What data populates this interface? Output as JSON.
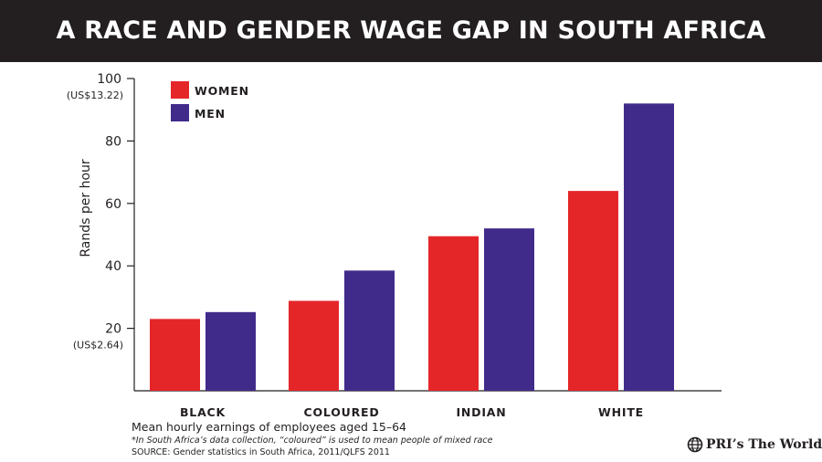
{
  "header": {
    "title": "A RACE AND GENDER WAGE GAP IN SOUTH AFRICA"
  },
  "chart_data": {
    "type": "bar",
    "title": "A RACE AND GENDER WAGE GAP IN SOUTH AFRICA",
    "ylabel": "Rands per hour",
    "xlabel": "",
    "ylim": [
      0,
      100
    ],
    "yticks": [
      {
        "value": 20,
        "label": "20",
        "sublabel": "(US$2.64)"
      },
      {
        "value": 40,
        "label": "40",
        "sublabel": ""
      },
      {
        "value": 60,
        "label": "60",
        "sublabel": ""
      },
      {
        "value": 80,
        "label": "80",
        "sublabel": ""
      },
      {
        "value": 100,
        "label": "100",
        "sublabel": "(US$13.22)"
      }
    ],
    "categories": [
      "BLACK",
      "COLOURED",
      "INDIAN",
      "WHITE"
    ],
    "series": [
      {
        "name": "WOMEN",
        "color": "#e52629",
        "values": [
          23,
          28.8,
          49.5,
          64
        ]
      },
      {
        "name": "MEN",
        "color": "#412b8a",
        "values": [
          25.2,
          38.5,
          52,
          92
        ]
      }
    ],
    "legend_position": "top-left",
    "grid": false
  },
  "footer": {
    "caption": "Mean hourly earnings of employees aged 15–64",
    "note": "*In South Africa’s data collection, “coloured” is used to mean people of mixed race",
    "source": "SOURCE: Gender statistics in South Africa, 2011/QLFS 2011"
  },
  "logo": {
    "text": "PRI’s The World"
  }
}
